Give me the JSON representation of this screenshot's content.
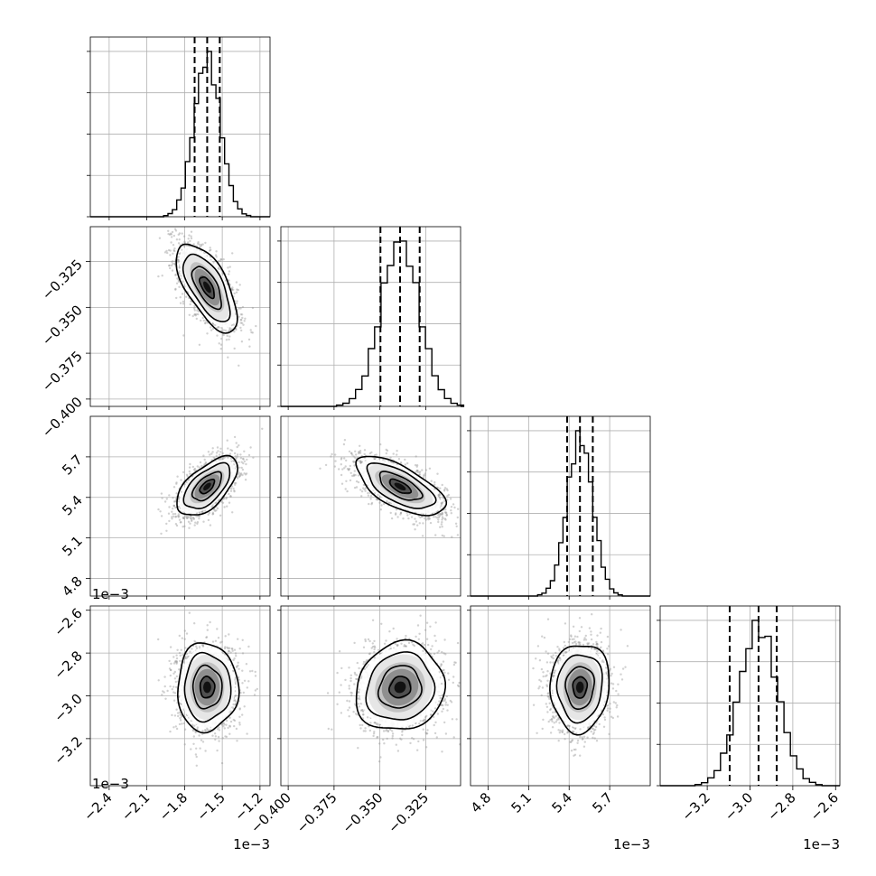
{
  "chart_data": {
    "type": "corner",
    "parameters": 4,
    "panel_type_note": "lower-triangle corner plot: 1D histograms on the diagonal, 2D density scatter with contours below",
    "grid": true,
    "colors": {
      "line": "#000000",
      "scatter": "#9a9a9a",
      "grid": "#b0b0b0"
    },
    "params": [
      {
        "range": [
          -2.55,
          -1.12
        ],
        "ticks": [
          -2.4,
          -2.1,
          -1.8,
          -1.5,
          -1.2
        ],
        "tick_labels": [
          "−2.4",
          "−2.1",
          "−1.8",
          "−1.5",
          "−1.2"
        ],
        "offset_text": "1e−3",
        "mean": -1.62,
        "sigma": 0.105,
        "quantiles": [
          -1.72,
          -1.62,
          -1.52
        ]
      },
      {
        "range": [
          -0.404,
          -0.306
        ],
        "ticks": [
          -0.4,
          -0.375,
          -0.35,
          -0.325
        ],
        "tick_labels": [
          "−0.400",
          "−0.375",
          "−0.350",
          "−0.325"
        ],
        "offset_text": "",
        "mean": -0.339,
        "sigma": 0.0105,
        "quantiles": [
          -0.3497,
          -0.339,
          -0.3283
        ]
      },
      {
        "range": [
          4.67,
          6.0
        ],
        "ticks": [
          4.8,
          5.1,
          5.4,
          5.7
        ],
        "tick_labels": [
          "4.8",
          "5.1",
          "5.4",
          "5.7"
        ],
        "offset_text": "1e−3",
        "mean": 5.48,
        "sigma": 0.095,
        "quantiles": [
          5.385,
          5.48,
          5.575
        ]
      },
      {
        "range": [
          -3.42,
          -2.58
        ],
        "ticks": [
          -3.2,
          -3.0,
          -2.8,
          -2.6
        ],
        "tick_labels": [
          "−3.2",
          "−3.0",
          "−2.8",
          "−2.6"
        ],
        "offset_text": "1e−3",
        "mean": -2.96,
        "sigma": 0.09,
        "quantiles": [
          -3.095,
          -2.96,
          -2.875
        ]
      }
    ],
    "correlations": [
      [
        1,
        -0.65,
        0.6,
        0.0
      ],
      [
        -0.65,
        1,
        -0.65,
        0.1
      ],
      [
        0.6,
        -0.65,
        1,
        0.05
      ],
      [
        0.0,
        0.1,
        0.05,
        1
      ]
    ]
  }
}
